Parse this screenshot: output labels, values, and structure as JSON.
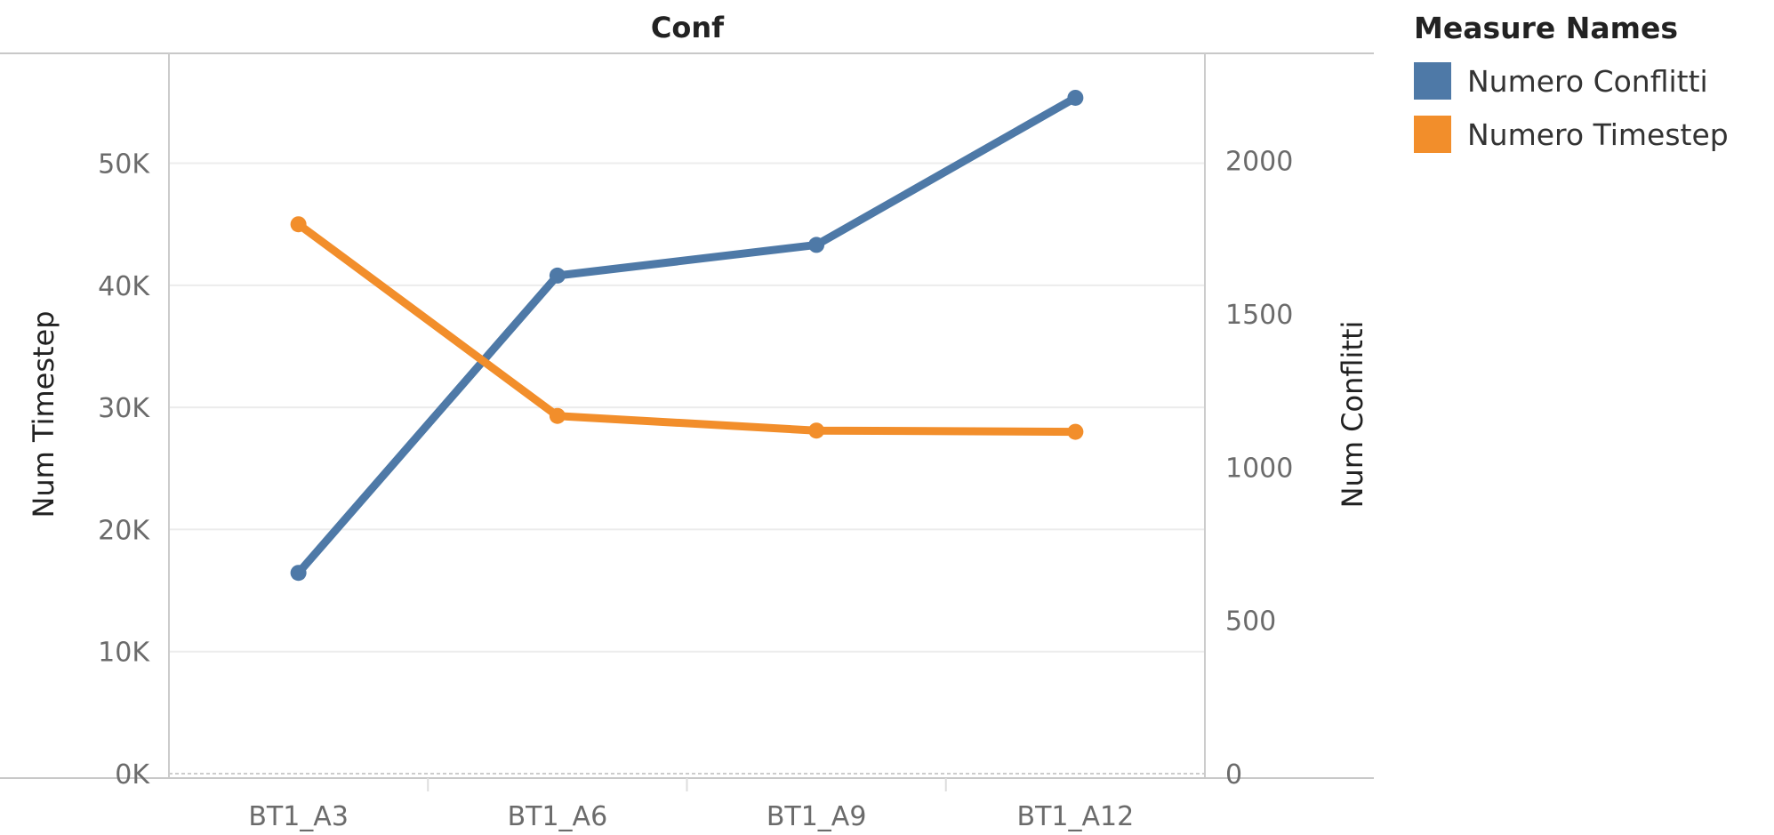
{
  "chart_data": {
    "type": "line",
    "header": "Conf",
    "categories": [
      "BT1_A3",
      "BT1_A6",
      "BT1_A9",
      "BT1_A12"
    ],
    "series": [
      {
        "name": "Numero Conflitti",
        "axis": "right",
        "color": "#4e79a7",
        "values": [
          655,
          1625,
          1725,
          2205
        ]
      },
      {
        "name": "Numero Timestep",
        "axis": "left",
        "color": "#f28e2b",
        "values": [
          45000,
          29300,
          28100,
          28000
        ]
      }
    ],
    "left_axis": {
      "label": "Num Timestep",
      "ticks": [
        "0K",
        "10K",
        "20K",
        "30K",
        "40K",
        "50K"
      ],
      "range": [
        0,
        59000
      ]
    },
    "right_axis": {
      "label": "Num Conflitti",
      "ticks": [
        "0",
        "500",
        "1000",
        "1500",
        "2000"
      ],
      "range": [
        0,
        2350
      ]
    },
    "legend": {
      "title": "Measure Names",
      "position": "top-right"
    },
    "grid": true
  }
}
